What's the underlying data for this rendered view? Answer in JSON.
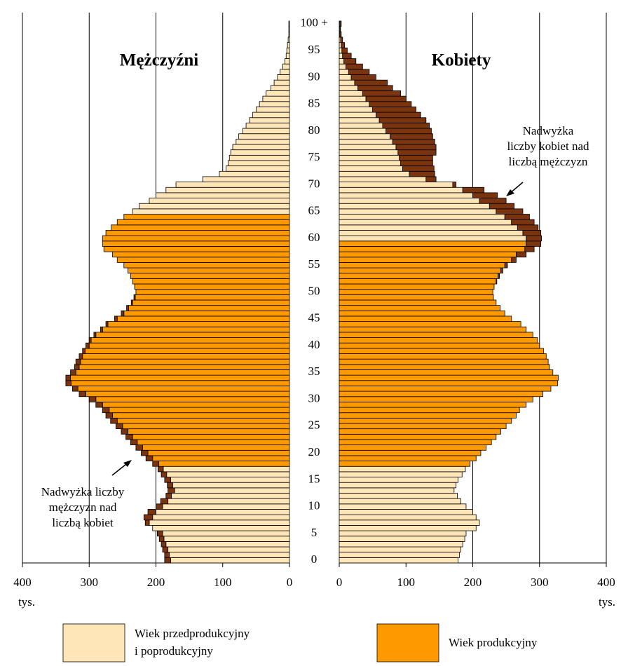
{
  "chart_data": {
    "type": "population_pyramid",
    "categories": [
      "0",
      null,
      null,
      null,
      null,
      "5",
      null,
      null,
      null,
      null,
      "10",
      null,
      null,
      null,
      null,
      "15",
      null,
      null,
      null,
      null,
      "20",
      null,
      null,
      null,
      null,
      "25",
      null,
      null,
      null,
      null,
      "30",
      null,
      null,
      null,
      null,
      "35",
      null,
      null,
      null,
      null,
      "40",
      null,
      null,
      null,
      null,
      "45",
      null,
      null,
      null,
      null,
      "50",
      null,
      null,
      null,
      null,
      "55",
      null,
      null,
      null,
      null,
      "60",
      null,
      null,
      null,
      null,
      "65",
      null,
      null,
      null,
      null,
      "70",
      null,
      null,
      null,
      null,
      "75",
      null,
      null,
      null,
      null,
      "80",
      null,
      null,
      null,
      null,
      "85",
      null,
      null,
      null,
      null,
      "90",
      null,
      null,
      null,
      null,
      "95",
      null,
      null,
      null,
      null,
      "100 +"
    ],
    "xlim": [
      0,
      400
    ],
    "xticks": [
      0,
      100,
      200,
      300,
      400
    ],
    "x_unit": "tys.",
    "grid": true,
    "colors": {
      "nonworking": "#FFE6B8",
      "working": "#FF9900",
      "surplus": "#7B3410"
    },
    "series": [
      {
        "name": "Mężczyźni",
        "side": "left",
        "working_age": [
          18,
          64
        ],
        "values": [
          187,
          187,
          190,
          192,
          195,
          198,
          205,
          216,
          218,
          212,
          200,
          193,
          185,
          182,
          183,
          187,
          192,
          197,
          205,
          215,
          222,
          230,
          238,
          245,
          252,
          260,
          268,
          275,
          280,
          290,
          300,
          315,
          325,
          335,
          335,
          328,
          322,
          320,
          315,
          310,
          305,
          300,
          293,
          283,
          275,
          262,
          252,
          244,
          237,
          233,
          230,
          232,
          235,
          238,
          242,
          248,
          258,
          265,
          278,
          280,
          280,
          275,
          267,
          258,
          248,
          235,
          225,
          210,
          200,
          185,
          170,
          130,
          105,
          95,
          92,
          90,
          88,
          85,
          80,
          76,
          70,
          65,
          60,
          55,
          50,
          45,
          40,
          35,
          28,
          23,
          18,
          14,
          10,
          7,
          5,
          4,
          3,
          2,
          1,
          1,
          1
        ]
      },
      {
        "name": "Kobiety",
        "side": "right",
        "working_age": [
          18,
          59
        ],
        "values": [
          178,
          180,
          182,
          185,
          188,
          190,
          205,
          210,
          205,
          200,
          190,
          182,
          177,
          172,
          175,
          178,
          184,
          189,
          196,
          205,
          212,
          220,
          228,
          235,
          242,
          250,
          258,
          265,
          270,
          280,
          290,
          305,
          317,
          327,
          328,
          320,
          315,
          313,
          310,
          306,
          300,
          297,
          290,
          280,
          272,
          258,
          248,
          241,
          235,
          231,
          230,
          232,
          236,
          240,
          245,
          252,
          265,
          280,
          292,
          302,
          303,
          302,
          298,
          292,
          285,
          275,
          262,
          250,
          237,
          217,
          175,
          145,
          143,
          142,
          140,
          140,
          145,
          145,
          143,
          140,
          138,
          135,
          130,
          122,
          115,
          108,
          100,
          92,
          80,
          72,
          55,
          45,
          35,
          25,
          18,
          12,
          8,
          5,
          3,
          2,
          3
        ]
      }
    ],
    "legend": [
      {
        "lines": [
          "Wiek przedprodukcyjny",
          "i poprodukcyjny"
        ],
        "color_key": "nonworking"
      },
      {
        "lines": [
          "Wiek produkcyjny"
        ],
        "color_key": "working"
      }
    ],
    "annotations": [
      {
        "lines": [
          "Nadwyżka liczby",
          "mężczyzn nad",
          "liczbą kobiet"
        ]
      },
      {
        "lines": [
          "Nadwyżka",
          "liczby kobiet nad",
          "liczbą mężczyzn"
        ]
      }
    ]
  }
}
